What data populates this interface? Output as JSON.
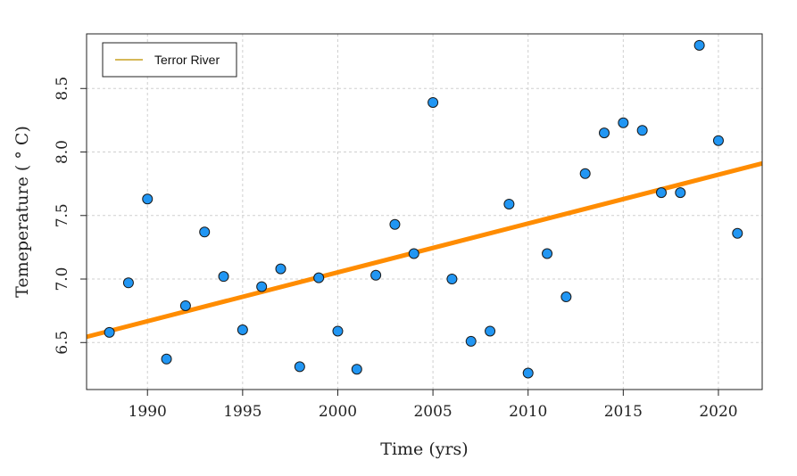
{
  "chart_data": {
    "type": "scatter",
    "xlabel": "Time (yrs)",
    "ylabel": "Temeperature ( ° C)",
    "xlim": [
      1986.8,
      2022.3
    ],
    "ylim": [
      6.13,
      8.93
    ],
    "xticks": [
      1990,
      1995,
      2000,
      2005,
      2010,
      2015,
      2020
    ],
    "xtick_labels": [
      "1990",
      "1995",
      "2000",
      "2005",
      "2010",
      "2015",
      "2020"
    ],
    "yticks": [
      6.5,
      7.0,
      7.5,
      8.0,
      8.5
    ],
    "ytick_labels": [
      "6.5",
      "7.0",
      "7.5",
      "8.0",
      "8.5"
    ],
    "grid": true,
    "legend_position": "top-left",
    "legend": [
      {
        "label": "Terror River",
        "color": "#c8a020"
      }
    ],
    "series": [
      {
        "kind": "points",
        "color": "#2196f3",
        "edge_color": "#1a1a1a",
        "x": [
          1988,
          1989,
          1990,
          1991,
          1992,
          1993,
          1994,
          1995,
          1996,
          1997,
          1998,
          1999,
          2000,
          2001,
          2002,
          2003,
          2004,
          2005,
          2006,
          2007,
          2008,
          2009,
          2010,
          2011,
          2012,
          2013,
          2014,
          2015,
          2016,
          2017,
          2018,
          2019,
          2020,
          2021
        ],
        "y": [
          6.58,
          6.97,
          7.63,
          6.37,
          6.79,
          7.37,
          7.02,
          6.6,
          6.94,
          7.08,
          6.31,
          7.01,
          6.59,
          6.29,
          7.03,
          7.43,
          7.2,
          8.39,
          7.0,
          6.51,
          6.59,
          7.59,
          6.26,
          7.2,
          6.86,
          7.83,
          8.15,
          8.23,
          8.17,
          7.68,
          7.68,
          8.84,
          8.09,
          7.36
        ]
      },
      {
        "kind": "trend-line",
        "color": "#ff8c00",
        "x": [
          1986.8,
          2022.3
        ],
        "y": [
          6.545,
          7.91
        ]
      }
    ]
  }
}
